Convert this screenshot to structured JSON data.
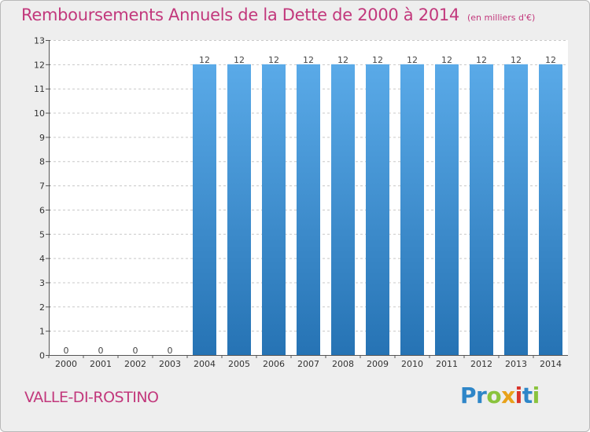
{
  "chart_title": "Remboursements Annuels de la Dette de 2000 à 2014",
  "chart_unit": "(en milliers d'€)",
  "location": "VALLE-DI-ROSTINO",
  "brand": {
    "letters": [
      "P",
      "r",
      "o",
      "x",
      "i",
      "t",
      "i"
    ]
  },
  "colors": {
    "title": "#c2387c",
    "bar_top": "#5aaae8",
    "bar_bottom": "#2673b4",
    "background": "#eeeeee"
  },
  "chart_data": {
    "type": "bar",
    "title": "Remboursements Annuels de la Dette de 2000 à 2014",
    "subtitle": "(en milliers d'€)",
    "categories": [
      "2000",
      "2001",
      "2002",
      "2003",
      "2004",
      "2005",
      "2006",
      "2007",
      "2008",
      "2009",
      "2010",
      "2011",
      "2012",
      "2013",
      "2014"
    ],
    "values": [
      0,
      0,
      0,
      0,
      12,
      12,
      12,
      12,
      12,
      12,
      12,
      12,
      12,
      12,
      12
    ],
    "data_labels": [
      "0",
      "0",
      "0",
      "0",
      "12",
      "12",
      "12",
      "12",
      "12",
      "12",
      "12",
      "12",
      "12",
      "12",
      "12"
    ],
    "yticks": [
      0,
      1,
      2,
      3,
      4,
      5,
      6,
      7,
      8,
      9,
      10,
      11,
      12,
      13
    ],
    "ylim": [
      0,
      13
    ],
    "grid": "horizontal dashed",
    "xlabel": "",
    "ylabel": ""
  }
}
